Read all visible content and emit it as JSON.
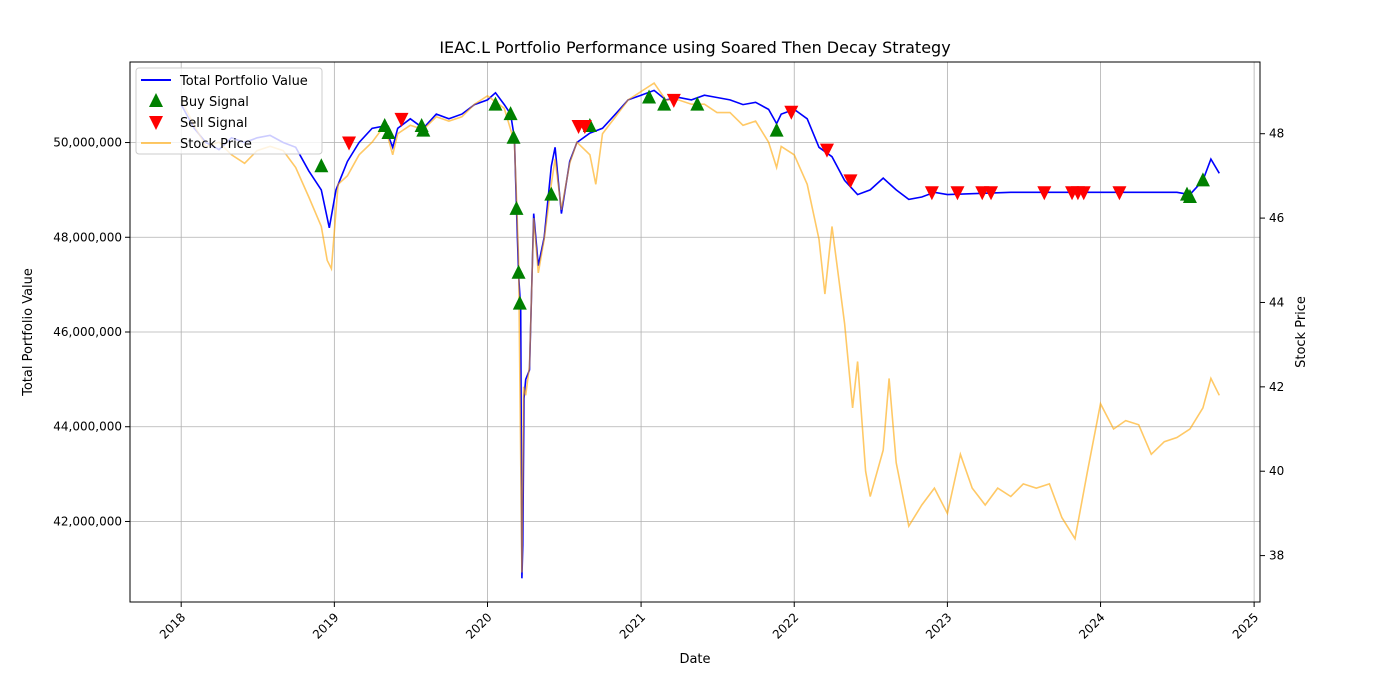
{
  "chart_data": {
    "type": "line",
    "title": "IEAC.L Portfolio Performance using Soared Then Decay Strategy",
    "xlabel": "Date",
    "ylabel": "Total Portfolio Value",
    "y2label": "Stock Price",
    "xlim": [
      "2017-09-01",
      "2025-01-15"
    ],
    "ylim": [
      40300000,
      51700000
    ],
    "y2lim": [
      36.9,
      49.7
    ],
    "x_ticks": [
      "2018",
      "2019",
      "2020",
      "2021",
      "2022",
      "2023",
      "2024",
      "2025"
    ],
    "y_ticks": [
      "42,000,000",
      "44,000,000",
      "46,000,000",
      "48,000,000",
      "50,000,000"
    ],
    "y2_ticks": [
      "38",
      "40",
      "42",
      "44",
      "46",
      "48"
    ],
    "grid": true,
    "legend_position": "top-left",
    "colors": {
      "portfolio": "#0000ff",
      "stock": "#ffa500",
      "buy": "#008000",
      "sell": "#ff0000"
    },
    "series": [
      {
        "name": "Total Portfolio Value",
        "axis": "left",
        "points": [
          [
            "2018-01-01",
            50800000
          ],
          [
            "2018-02-01",
            50300000
          ],
          [
            "2018-03-01",
            50000000
          ],
          [
            "2018-04-01",
            49850000
          ],
          [
            "2018-05-01",
            50100000
          ],
          [
            "2018-06-01",
            50000000
          ],
          [
            "2018-07-01",
            50100000
          ],
          [
            "2018-08-01",
            50150000
          ],
          [
            "2018-09-01",
            50000000
          ],
          [
            "2018-10-01",
            49900000
          ],
          [
            "2018-11-01",
            49400000
          ],
          [
            "2018-12-01",
            49000000
          ],
          [
            "2018-12-20",
            48200000
          ],
          [
            "2019-01-05",
            49000000
          ],
          [
            "2019-02-01",
            49600000
          ],
          [
            "2019-03-01",
            50000000
          ],
          [
            "2019-04-01",
            50300000
          ],
          [
            "2019-05-01",
            50350000
          ],
          [
            "2019-05-20",
            49900000
          ],
          [
            "2019-06-01",
            50300000
          ],
          [
            "2019-07-01",
            50500000
          ],
          [
            "2019-08-01",
            50300000
          ],
          [
            "2019-09-01",
            50600000
          ],
          [
            "2019-10-01",
            50500000
          ],
          [
            "2019-11-01",
            50600000
          ],
          [
            "2019-12-01",
            50800000
          ],
          [
            "2020-01-01",
            50900000
          ],
          [
            "2020-01-20",
            51050000
          ],
          [
            "2020-02-10",
            50800000
          ],
          [
            "2020-02-25",
            50600000
          ],
          [
            "2020-03-05",
            50100000
          ],
          [
            "2020-03-10",
            48600000
          ],
          [
            "2020-03-15",
            47200000
          ],
          [
            "2020-03-20",
            46500000
          ],
          [
            "2020-03-23",
            40800000
          ],
          [
            "2020-03-25",
            41500000
          ],
          [
            "2020-03-28",
            44600000
          ],
          [
            "2020-04-01",
            45000000
          ],
          [
            "2020-04-10",
            45200000
          ],
          [
            "2020-04-20",
            48500000
          ],
          [
            "2020-05-01",
            47400000
          ],
          [
            "2020-05-15",
            48000000
          ],
          [
            "2020-06-01",
            49500000
          ],
          [
            "2020-06-10",
            49900000
          ],
          [
            "2020-06-25",
            48500000
          ],
          [
            "2020-07-15",
            49600000
          ],
          [
            "2020-08-01",
            50000000
          ],
          [
            "2020-09-01",
            50200000
          ],
          [
            "2020-10-01",
            50300000
          ],
          [
            "2020-11-01",
            50600000
          ],
          [
            "2020-12-01",
            50900000
          ],
          [
            "2021-01-01",
            51000000
          ],
          [
            "2021-02-01",
            51100000
          ],
          [
            "2021-03-01",
            50900000
          ],
          [
            "2021-04-01",
            50950000
          ],
          [
            "2021-05-01",
            50900000
          ],
          [
            "2021-06-01",
            51000000
          ],
          [
            "2021-07-01",
            50950000
          ],
          [
            "2021-08-01",
            50900000
          ],
          [
            "2021-09-01",
            50800000
          ],
          [
            "2021-10-01",
            50850000
          ],
          [
            "2021-11-01",
            50700000
          ],
          [
            "2021-11-20",
            50400000
          ],
          [
            "2021-12-01",
            50600000
          ],
          [
            "2022-01-01",
            50700000
          ],
          [
            "2022-02-01",
            50500000
          ],
          [
            "2022-03-01",
            49900000
          ],
          [
            "2022-04-01",
            49700000
          ],
          [
            "2022-05-01",
            49200000
          ],
          [
            "2022-06-01",
            48900000
          ],
          [
            "2022-07-01",
            49000000
          ],
          [
            "2022-08-01",
            49250000
          ],
          [
            "2022-09-01",
            49000000
          ],
          [
            "2022-10-01",
            48800000
          ],
          [
            "2022-11-01",
            48850000
          ],
          [
            "2022-12-01",
            48950000
          ],
          [
            "2023-01-01",
            48900000
          ],
          [
            "2023-06-01",
            48950000
          ],
          [
            "2024-01-01",
            48950000
          ],
          [
            "2024-07-01",
            48950000
          ],
          [
            "2024-08-01",
            48900000
          ],
          [
            "2024-09-01",
            49200000
          ],
          [
            "2024-09-20",
            49650000
          ],
          [
            "2024-10-10",
            49350000
          ]
        ]
      },
      {
        "name": "Stock Price",
        "axis": "right",
        "points": [
          [
            "2018-01-01",
            48.8
          ],
          [
            "2018-02-01",
            48.2
          ],
          [
            "2018-03-01",
            47.7
          ],
          [
            "2018-04-01",
            47.8
          ],
          [
            "2018-05-01",
            47.5
          ],
          [
            "2018-06-01",
            47.3
          ],
          [
            "2018-07-01",
            47.6
          ],
          [
            "2018-08-01",
            47.7
          ],
          [
            "2018-09-01",
            47.6
          ],
          [
            "2018-10-01",
            47.2
          ],
          [
            "2018-11-01",
            46.5
          ],
          [
            "2018-12-01",
            45.8
          ],
          [
            "2018-12-15",
            45.0
          ],
          [
            "2018-12-25",
            44.8
          ],
          [
            "2019-01-10",
            46.8
          ],
          [
            "2019-02-01",
            47.0
          ],
          [
            "2019-03-01",
            47.5
          ],
          [
            "2019-04-01",
            47.8
          ],
          [
            "2019-05-01",
            48.2
          ],
          [
            "2019-05-20",
            47.5
          ],
          [
            "2019-06-01",
            48.0
          ],
          [
            "2019-07-01",
            48.2
          ],
          [
            "2019-08-01",
            48.1
          ],
          [
            "2019-09-01",
            48.4
          ],
          [
            "2019-10-01",
            48.3
          ],
          [
            "2019-11-01",
            48.4
          ],
          [
            "2019-12-01",
            48.7
          ],
          [
            "2020-01-01",
            48.9
          ],
          [
            "2020-02-10",
            48.6
          ],
          [
            "2020-03-05",
            47.8
          ],
          [
            "2020-03-10",
            46.5
          ],
          [
            "2020-03-15",
            45.0
          ],
          [
            "2020-03-23",
            37.6
          ],
          [
            "2020-03-27",
            42.0
          ],
          [
            "2020-04-01",
            41.8
          ],
          [
            "2020-04-10",
            42.5
          ],
          [
            "2020-04-20",
            46.0
          ],
          [
            "2020-05-01",
            44.7
          ],
          [
            "2020-05-15",
            45.5
          ],
          [
            "2020-06-01",
            46.8
          ],
          [
            "2020-06-10",
            47.4
          ],
          [
            "2020-06-25",
            46.2
          ],
          [
            "2020-07-15",
            47.3
          ],
          [
            "2020-08-01",
            47.8
          ],
          [
            "2020-09-01",
            47.5
          ],
          [
            "2020-09-15",
            46.8
          ],
          [
            "2020-10-01",
            48.0
          ],
          [
            "2020-11-01",
            48.4
          ],
          [
            "2020-12-01",
            48.8
          ],
          [
            "2021-01-01",
            49.0
          ],
          [
            "2021-02-01",
            49.2
          ],
          [
            "2021-03-01",
            48.8
          ],
          [
            "2021-04-01",
            48.8
          ],
          [
            "2021-05-01",
            48.7
          ],
          [
            "2021-06-01",
            48.7
          ],
          [
            "2021-07-01",
            48.5
          ],
          [
            "2021-08-01",
            48.5
          ],
          [
            "2021-09-01",
            48.2
          ],
          [
            "2021-10-01",
            48.3
          ],
          [
            "2021-11-01",
            47.8
          ],
          [
            "2021-11-20",
            47.2
          ],
          [
            "2021-12-01",
            47.7
          ],
          [
            "2022-01-01",
            47.5
          ],
          [
            "2022-02-01",
            46.8
          ],
          [
            "2022-03-01",
            45.5
          ],
          [
            "2022-03-15",
            44.2
          ],
          [
            "2022-04-01",
            45.8
          ],
          [
            "2022-05-01",
            43.5
          ],
          [
            "2022-05-20",
            41.5
          ],
          [
            "2022-06-01",
            42.6
          ],
          [
            "2022-06-20",
            40.0
          ],
          [
            "2022-07-01",
            39.4
          ],
          [
            "2022-08-01",
            40.5
          ],
          [
            "2022-08-15",
            42.2
          ],
          [
            "2022-09-01",
            40.2
          ],
          [
            "2022-10-01",
            38.7
          ],
          [
            "2022-11-01",
            39.2
          ],
          [
            "2022-12-01",
            39.6
          ],
          [
            "2023-01-01",
            39.0
          ],
          [
            "2023-02-01",
            40.4
          ],
          [
            "2023-03-01",
            39.6
          ],
          [
            "2023-04-01",
            39.2
          ],
          [
            "2023-05-01",
            39.6
          ],
          [
            "2023-06-01",
            39.4
          ],
          [
            "2023-07-01",
            39.7
          ],
          [
            "2023-08-01",
            39.6
          ],
          [
            "2023-09-01",
            39.7
          ],
          [
            "2023-10-01",
            38.9
          ],
          [
            "2023-11-01",
            38.4
          ],
          [
            "2023-12-01",
            40.0
          ],
          [
            "2024-01-01",
            41.6
          ],
          [
            "2024-02-01",
            41.0
          ],
          [
            "2024-03-01",
            41.2
          ],
          [
            "2024-04-01",
            41.1
          ],
          [
            "2024-05-01",
            40.4
          ],
          [
            "2024-06-01",
            40.7
          ],
          [
            "2024-07-01",
            40.8
          ],
          [
            "2024-08-01",
            41.0
          ],
          [
            "2024-09-01",
            41.5
          ],
          [
            "2024-09-20",
            42.2
          ],
          [
            "2024-10-10",
            41.8
          ]
        ]
      }
    ],
    "buy_signals": [
      [
        "2018-12-01",
        49500000
      ],
      [
        "2019-05-01",
        50350000
      ],
      [
        "2019-05-10",
        50200000
      ],
      [
        "2019-07-28",
        50350000
      ],
      [
        "2019-08-01",
        50250000
      ],
      [
        "2020-01-20",
        50800000
      ],
      [
        "2020-02-25",
        50600000
      ],
      [
        "2020-03-03",
        50100000
      ],
      [
        "2020-03-10",
        48600000
      ],
      [
        "2020-03-15",
        47250000
      ],
      [
        "2020-03-18",
        46600000
      ],
      [
        "2020-06-01",
        48900000
      ],
      [
        "2020-09-01",
        50350000
      ],
      [
        "2021-01-20",
        50950000
      ],
      [
        "2021-02-25",
        50800000
      ],
      [
        "2021-05-15",
        50800000
      ],
      [
        "2021-11-20",
        50250000
      ],
      [
        "2024-07-25",
        48900000
      ],
      [
        "2024-08-01",
        48850000
      ],
      [
        "2024-09-01",
        49200000
      ]
    ],
    "sell_signals": [
      [
        "2019-02-05",
        50000000
      ],
      [
        "2019-06-10",
        50500000
      ],
      [
        "2020-08-05",
        50350000
      ],
      [
        "2020-08-20",
        50350000
      ],
      [
        "2021-03-20",
        50900000
      ],
      [
        "2021-12-25",
        50650000
      ],
      [
        "2022-03-20",
        49850000
      ],
      [
        "2022-05-15",
        49200000
      ],
      [
        "2022-11-25",
        48950000
      ],
      [
        "2023-01-25",
        48950000
      ],
      [
        "2023-03-25",
        48950000
      ],
      [
        "2023-04-15",
        48950000
      ],
      [
        "2023-08-20",
        48950000
      ],
      [
        "2023-10-25",
        48950000
      ],
      [
        "2023-11-08",
        48950000
      ],
      [
        "2023-11-22",
        48950000
      ],
      [
        "2024-02-15",
        48950000
      ]
    ],
    "legend": [
      "Total Portfolio Value",
      "Buy Signal",
      "Sell Signal",
      "Stock Price"
    ]
  }
}
